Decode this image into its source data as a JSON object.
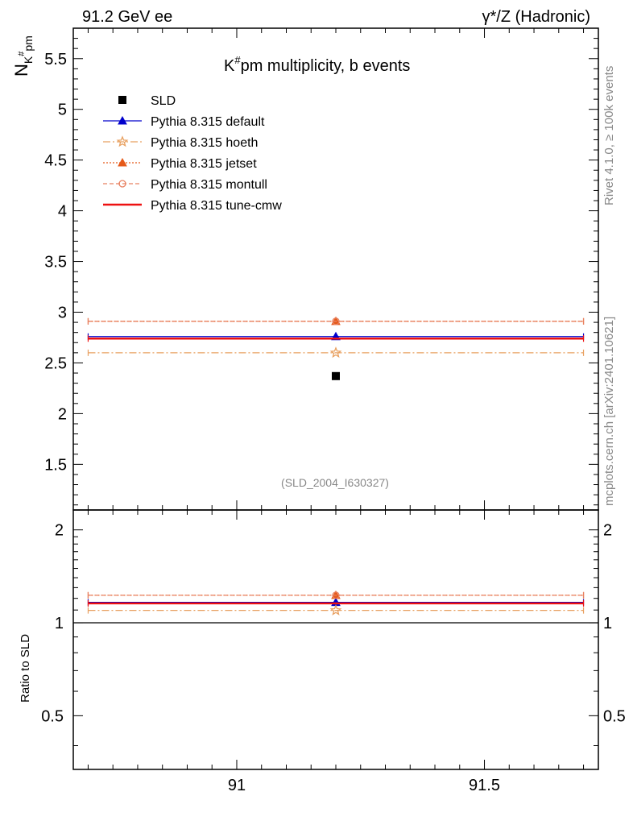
{
  "header": {
    "left": "91.2 GeV ee",
    "right": "γ*/Z (Hadronic)"
  },
  "side": {
    "rivet": "Rivet 4.1.0, ≥ 100k events",
    "mcplots": "mcplots.cern.ch [arXiv:2401.10621]"
  },
  "chart_data": {
    "type": "scatter",
    "title": "K#pm multiplicity, b events",
    "title_parts": {
      "base": "K",
      "sup": "#",
      "rest": "pm multiplicity, b events"
    },
    "ylabel_parts": {
      "base": "N",
      "sub": "K",
      "subsup": "#",
      "subrest": "pm"
    },
    "ratio_ylabel": "Ratio to SLD",
    "analysis_id": "(SLD_2004_I630327)",
    "xlim": [
      90.67,
      91.73
    ],
    "ylim": [
      1.05,
      5.8
    ],
    "ratio_ylim": [
      0.335,
      2.32
    ],
    "bin": [
      90.7,
      91.7
    ],
    "x_point": 91.2,
    "x_ticks": [
      {
        "v": 91,
        "label": "91"
      },
      {
        "v": 91.5,
        "label": "91.5"
      }
    ],
    "y_ticks": [
      {
        "v": 1.5,
        "label": "1.5"
      },
      {
        "v": 2,
        "label": "2"
      },
      {
        "v": 2.5,
        "label": "2.5"
      },
      {
        "v": 3,
        "label": "3"
      },
      {
        "v": 3.5,
        "label": "3.5"
      },
      {
        "v": 4,
        "label": "4"
      },
      {
        "v": 4.5,
        "label": "4.5"
      },
      {
        "v": 5,
        "label": "5"
      },
      {
        "v": 5.5,
        "label": "5.5"
      }
    ],
    "ratio_y_ticks": [
      {
        "v": 0.5,
        "label": "0.5"
      },
      {
        "v": 1,
        "label": "1"
      },
      {
        "v": 2,
        "label": "2"
      }
    ],
    "data": {
      "name": "SLD",
      "value": 2.37
    },
    "series": [
      {
        "name": "Pythia 8.315 default",
        "value": 2.76,
        "ratio": 1.165,
        "color": "#0000cc",
        "dash": "none",
        "marker": "triangle"
      },
      {
        "name": "Pythia 8.315 hoeth",
        "value": 2.6,
        "ratio": 1.097,
        "color": "#e8a060",
        "dash": "9,3,2,3",
        "marker": "star"
      },
      {
        "name": "Pythia 8.315 jetset",
        "value": 2.91,
        "ratio": 1.228,
        "color": "#e55a1a",
        "dash": "2,2",
        "marker": "triangle-filled"
      },
      {
        "name": "Pythia 8.315 montull",
        "value": 2.91,
        "ratio": 1.228,
        "color": "#e88060",
        "dash": "5,3",
        "marker": "circle-open"
      },
      {
        "name": "Pythia 8.315 tune-cmw",
        "value": 2.74,
        "ratio": 1.156,
        "color": "#ee1111",
        "dash": "none",
        "marker": "none"
      }
    ]
  }
}
